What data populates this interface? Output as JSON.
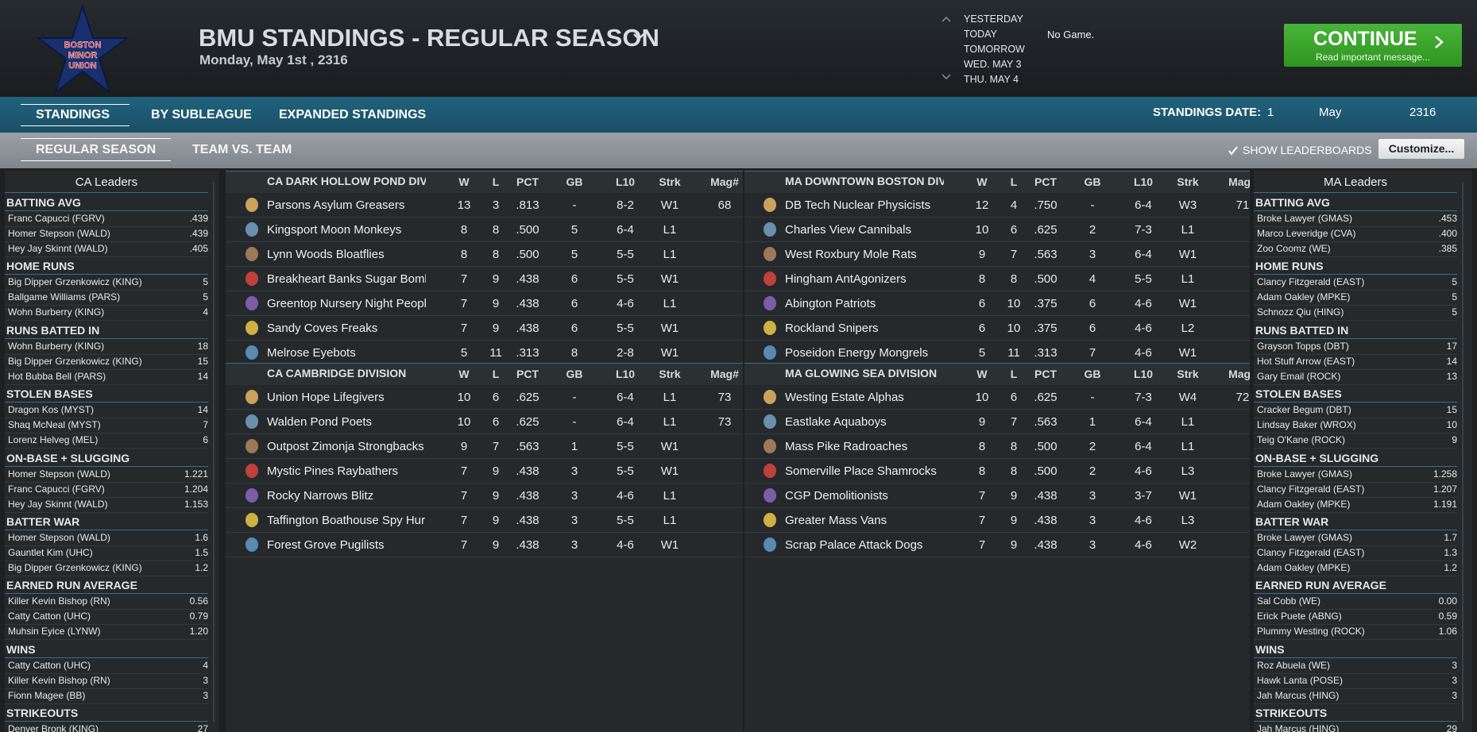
{
  "header": {
    "logo": [
      "BOSTON",
      "MINOR",
      "UNION"
    ],
    "title": "BMU STANDINGS - REGULAR SEASON",
    "date": "Monday, May 1st , 2316",
    "schedule": [
      "YESTERDAY",
      "TODAY",
      "TOMORROW",
      "WED. MAY 3",
      "THU. MAY 4"
    ],
    "game_status": "No Game.",
    "continue": {
      "label": "CONTINUE",
      "message": "Read important message..."
    }
  },
  "tabs": [
    "STANDINGS",
    "BY SUBLEAGUE",
    "EXPANDED STANDINGS"
  ],
  "standings_date": {
    "label": "STANDINGS DATE:",
    "day": "1",
    "month": "May",
    "year": "2316"
  },
  "subtabs": [
    "REGULAR SEASON",
    "TEAM VS. TEAM"
  ],
  "show_leaderboards": "SHOW LEADERBOARDS",
  "customize": "Customize...",
  "columns": [
    "W",
    "L",
    "PCT",
    "GB",
    "L10",
    "Strk",
    "Mag#"
  ],
  "divisions": [
    {
      "name": "CA DARK HOLLOW POND DIVISIO",
      "rows": [
        [
          "Parsons Asylum Greasers",
          "13",
          "3",
          ".813",
          "-",
          "8-2",
          "W1",
          "68"
        ],
        [
          "Kingsport Moon Monkeys",
          "8",
          "8",
          ".500",
          "5",
          "6-4",
          "L1",
          null
        ],
        [
          "Lynn Woods Bloatflies",
          "8",
          "8",
          ".500",
          "5",
          "5-5",
          "L1",
          null
        ],
        [
          "Breakheart Banks Sugar Bomb",
          "7",
          "9",
          ".438",
          "6",
          "5-5",
          "W1",
          null
        ],
        [
          "Greentop Nursery Night Peopl",
          "7",
          "9",
          ".438",
          "6",
          "4-6",
          "L1",
          null
        ],
        [
          "Sandy Coves Freaks",
          "7",
          "9",
          ".438",
          "6",
          "5-5",
          "W1",
          null
        ],
        [
          "Melrose Eyebots",
          "5",
          "11",
          ".313",
          "8",
          "2-8",
          "W1",
          null
        ]
      ]
    },
    {
      "name": "CA CAMBRIDGE DIVISION",
      "rows": [
        [
          "Union Hope Lifegivers",
          "10",
          "6",
          ".625",
          "-",
          "6-4",
          "L1",
          "73"
        ],
        [
          "Walden Pond Poets",
          "10",
          "6",
          ".625",
          "-",
          "6-4",
          "L1",
          "73"
        ],
        [
          "Outpost Zimonja Strongbacks",
          "9",
          "7",
          ".563",
          "1",
          "5-5",
          "W1",
          null
        ],
        [
          "Mystic Pines Raybathers",
          "7",
          "9",
          ".438",
          "3",
          "5-5",
          "W1",
          null
        ],
        [
          "Rocky Narrows Blitz",
          "7",
          "9",
          ".438",
          "3",
          "4-6",
          "L1",
          null
        ],
        [
          "Taffington Boathouse Spy Hur",
          "7",
          "9",
          ".438",
          "3",
          "5-5",
          "L1",
          null
        ],
        [
          "Forest Grove Pugilists",
          "7",
          "9",
          ".438",
          "3",
          "4-6",
          "W1",
          null
        ]
      ]
    },
    {
      "name": "MA DOWNTOWN BOSTON DIVISI",
      "rows": [
        [
          "DB Tech Nuclear Physicists",
          "12",
          "4",
          ".750",
          "-",
          "6-4",
          "W3",
          "71"
        ],
        [
          "Charles View Cannibals",
          "10",
          "6",
          ".625",
          "2",
          "7-3",
          "L1",
          null
        ],
        [
          "West Roxbury Mole Rats",
          "9",
          "7",
          ".563",
          "3",
          "6-4",
          "W1",
          null
        ],
        [
          "Hingham AntAgonizers",
          "8",
          "8",
          ".500",
          "4",
          "5-5",
          "L1",
          null
        ],
        [
          "Abington Patriots",
          "6",
          "10",
          ".375",
          "6",
          "4-6",
          "W1",
          null
        ],
        [
          "Rockland Snipers",
          "6",
          "10",
          ".375",
          "6",
          "4-6",
          "L2",
          null
        ],
        [
          "Poseidon Energy Mongrels",
          "5",
          "11",
          ".313",
          "7",
          "4-6",
          "W1",
          null
        ]
      ]
    },
    {
      "name": "MA GLOWING SEA DIVISION",
      "rows": [
        [
          "Westing Estate Alphas",
          "10",
          "6",
          ".625",
          "-",
          "7-3",
          "W4",
          "72"
        ],
        [
          "Eastlake Aquaboys",
          "9",
          "7",
          ".563",
          "1",
          "6-4",
          "L1",
          null
        ],
        [
          "Mass Pike Radroaches",
          "8",
          "8",
          ".500",
          "2",
          "6-4",
          "L1",
          null
        ],
        [
          "Somerville Place Shamrocks",
          "8",
          "8",
          ".500",
          "2",
          "4-6",
          "L3",
          null
        ],
        [
          "CGP Demolitionists",
          "7",
          "9",
          ".438",
          "3",
          "3-7",
          "W1",
          null
        ],
        [
          "Greater Mass Vans",
          "7",
          "9",
          ".438",
          "3",
          "4-6",
          "L3",
          null
        ],
        [
          "Scrap Palace Attack Dogs",
          "7",
          "9",
          ".438",
          "3",
          "4-6",
          "W2",
          null
        ]
      ]
    }
  ],
  "leaders": [
    {
      "title": "CA Leaders",
      "sections": [
        {
          "title": "BATTING AVG",
          "rows": [
            [
              "Franc Capucci (FGRV)",
              ".439"
            ],
            [
              "Homer Stepson (WALD)",
              ".439"
            ],
            [
              "Hey Jay Skinnt (WALD)",
              ".405"
            ]
          ]
        },
        {
          "title": "HOME RUNS",
          "rows": [
            [
              "Big Dipper Grzenkowicz (KING)",
              "5"
            ],
            [
              "Ballgame Williams (PARS)",
              "5"
            ],
            [
              "Wohn Burberry (KING)",
              "4"
            ]
          ]
        },
        {
          "title": "RUNS BATTED IN",
          "rows": [
            [
              "Wohn Burberry (KING)",
              "18"
            ],
            [
              "Big Dipper Grzenkowicz (KING)",
              "15"
            ],
            [
              "Hot Bubba Bell (PARS)",
              "14"
            ]
          ]
        },
        {
          "title": "STOLEN BASES",
          "rows": [
            [
              "Dragon Kos (MYST)",
              "14"
            ],
            [
              "Shaq McNeal (MYST)",
              "7"
            ],
            [
              "Lorenz Helveg (MEL)",
              "6"
            ]
          ]
        },
        {
          "title": "ON-BASE + SLUGGING",
          "rows": [
            [
              "Homer Stepson (WALD)",
              "1.221"
            ],
            [
              "Franc Capucci (FGRV)",
              "1.204"
            ],
            [
              "Hey Jay Skinnt (WALD)",
              "1.153"
            ]
          ]
        },
        {
          "title": "BATTER WAR",
          "rows": [
            [
              "Homer Stepson (WALD)",
              "1.6"
            ],
            [
              "Gauntlet Kim (UHC)",
              "1.5"
            ],
            [
              "Big Dipper Grzenkowicz (KING)",
              "1.2"
            ]
          ]
        },
        {
          "title": "EARNED RUN AVERAGE",
          "rows": [
            [
              "Killer Kevin Bishop (RN)",
              "0.56"
            ],
            [
              "Catty Catton (UHC)",
              "0.79"
            ],
            [
              "Muhsin Eyice (LYNW)",
              "1.20"
            ]
          ]
        },
        {
          "title": "WINS",
          "rows": [
            [
              "Catty Catton (UHC)",
              "4"
            ],
            [
              "Killer Kevin Bishop (RN)",
              "3"
            ],
            [
              "Fionn Magee (BB)",
              "3"
            ]
          ]
        },
        {
          "title": "STRIKEOUTS",
          "rows": [
            [
              "Denver Bronk (KING)",
              "27"
            ]
          ]
        }
      ]
    },
    {
      "title": "MA Leaders",
      "sections": [
        {
          "title": "BATTING AVG",
          "rows": [
            [
              "Broke Lawyer (GMAS)",
              ".453"
            ],
            [
              "Marco Leveridge (CVA)",
              ".400"
            ],
            [
              "Zoo Coomz (WE)",
              ".385"
            ]
          ]
        },
        {
          "title": "HOME RUNS",
          "rows": [
            [
              "Clancy Fitzgerald (EAST)",
              "5"
            ],
            [
              "Adam Oakley (MPKE)",
              "5"
            ],
            [
              "Schnozz Qiu (HING)",
              "5"
            ]
          ]
        },
        {
          "title": "RUNS BATTED IN",
          "rows": [
            [
              "Grayson Topps (DBT)",
              "17"
            ],
            [
              "Hot Stuff Arrow (EAST)",
              "14"
            ],
            [
              "Gary Email (ROCK)",
              "13"
            ]
          ]
        },
        {
          "title": "STOLEN BASES",
          "rows": [
            [
              "Cracker Begum (DBT)",
              "15"
            ],
            [
              "Lindsay Baker (WROX)",
              "10"
            ],
            [
              "Teig O'Kane (ROCK)",
              "9"
            ]
          ]
        },
        {
          "title": "ON-BASE + SLUGGING",
          "rows": [
            [
              "Broke Lawyer (GMAS)",
              "1.258"
            ],
            [
              "Clancy Fitzgerald (EAST)",
              "1.207"
            ],
            [
              "Adam Oakley (MPKE)",
              "1.191"
            ]
          ]
        },
        {
          "title": "BATTER WAR",
          "rows": [
            [
              "Broke Lawyer (GMAS)",
              "1.7"
            ],
            [
              "Clancy Fitzgerald (EAST)",
              "1.3"
            ],
            [
              "Adam Oakley (MPKE)",
              "1.2"
            ]
          ]
        },
        {
          "title": "EARNED RUN AVERAGE",
          "rows": [
            [
              "Sal Cobb (WE)",
              "0.00"
            ],
            [
              "Erick Puete (ABNG)",
              "0.59"
            ],
            [
              "Plummy Westing (ROCK)",
              "1.06"
            ]
          ]
        },
        {
          "title": "WINS",
          "rows": [
            [
              "Roz Abuela (WE)",
              "3"
            ],
            [
              "Hawk Lanta (POSE)",
              "3"
            ],
            [
              "Jah Marcus (HING)",
              "3"
            ]
          ]
        },
        {
          "title": "STRIKEOUTS",
          "rows": [
            [
              "Jah Marcus (HING)",
              "29"
            ]
          ]
        }
      ]
    }
  ]
}
